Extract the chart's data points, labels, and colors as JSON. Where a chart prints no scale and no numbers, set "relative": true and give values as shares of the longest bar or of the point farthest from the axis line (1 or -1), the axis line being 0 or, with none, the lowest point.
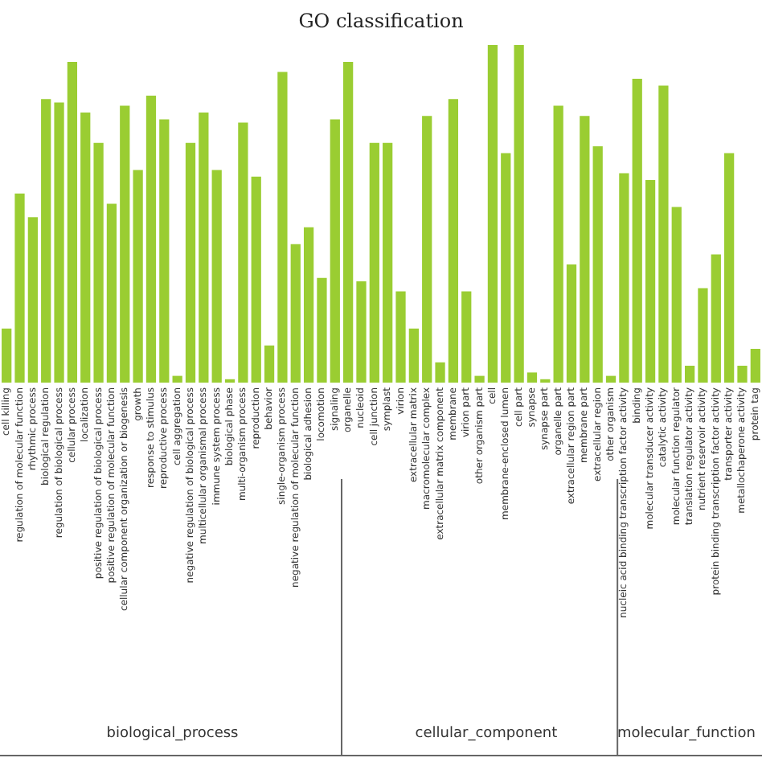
{
  "chart_data": {
    "type": "bar",
    "title": "GO classification",
    "relative": true,
    "color": "#9acd32",
    "grid": false,
    "categories": [
      "cell killing",
      "regulation of molecular function",
      "rhythmic process",
      "biological regulation",
      "regulation of biological process",
      "cellular process",
      "localization",
      "positive regulation of biological process",
      "positive regulation of molecular function",
      "cellular component organization or biogenesis",
      "growth",
      "response to stimulus",
      "reproductive process",
      "cell aggregation",
      "negative regulation of biological process",
      "multicellular organismal process",
      "immune system process",
      "biological phase",
      "multi-organism process",
      "reproduction",
      "behavior",
      "single-organism process",
      "negative regulation of molecular function",
      "biological adhesion",
      "locomotion",
      "signaling",
      "organelle",
      "nucleoid",
      "cell junction",
      "symplast",
      "virion",
      "extracellular matrix",
      "macromolecular complex",
      "extracellular matrix component",
      "membrane",
      "virion part",
      "other organism part",
      "cell",
      "membrane-enclosed lumen",
      "cell part",
      "synapse",
      "synapse part",
      "organelle part",
      "extracellular region part",
      "membrane part",
      "extracellular region",
      "other organism",
      "nucleic acid binding transcription factor activity",
      "binding",
      "molecular transducer activity",
      "catalytic activity",
      "molecular function regulator",
      "translation regulator activity",
      "nutrient reservoir activity",
      "protein binding transcription factor activity",
      "transporter activity",
      "metallochaperone activity",
      "protein tag"
    ],
    "values": [
      0.16,
      0.56,
      0.49,
      0.84,
      0.83,
      0.95,
      0.8,
      0.71,
      0.53,
      0.82,
      0.63,
      0.85,
      0.78,
      0.02,
      0.71,
      0.8,
      0.63,
      0.01,
      0.77,
      0.61,
      0.11,
      0.92,
      0.41,
      0.46,
      0.31,
      0.78,
      0.95,
      0.3,
      0.71,
      0.71,
      0.27,
      0.16,
      0.79,
      0.06,
      0.84,
      0.27,
      0.02,
      1,
      0.68,
      1,
      0.03,
      0.01,
      0.82,
      0.35,
      0.79,
      0.7,
      0.02,
      0.62,
      0.9,
      0.6,
      0.88,
      0.52,
      0.05,
      0.28,
      0.38,
      0.68,
      0.05,
      0.1
    ],
    "annotations": [
      "biological_process",
      "cellular_component",
      "molecular_function"
    ]
  }
}
